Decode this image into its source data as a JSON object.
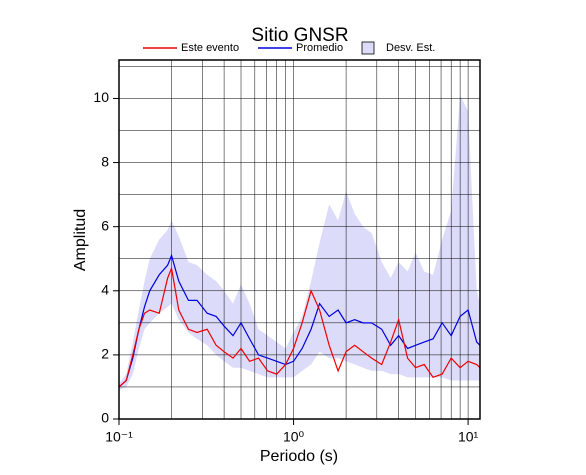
{
  "chart_data": {
    "type": "line",
    "title": "Sitio GNSR",
    "xlabel": "Periodo (s)",
    "ylabel": "Amplitud",
    "xscale": "log",
    "xlim": [
      0.1,
      11.7
    ],
    "ylim": [
      0,
      11.2
    ],
    "xticks": [
      {
        "value": 0.1,
        "label": "10⁻¹"
      },
      {
        "value": 1,
        "label": "10⁰"
      },
      {
        "value": 10,
        "label": "10¹"
      }
    ],
    "xminor_ticks": [
      0.2,
      0.3,
      0.4,
      0.5,
      0.6,
      0.7,
      0.8,
      0.9,
      2,
      3,
      4,
      5,
      6,
      7,
      8,
      9
    ],
    "yticks": [
      0,
      2,
      4,
      6,
      8,
      10
    ],
    "yminor_ticks": [
      1,
      3,
      5,
      7,
      9,
      11
    ],
    "grid": true,
    "x": [
      0.1,
      0.11,
      0.12,
      0.13,
      0.14,
      0.15,
      0.17,
      0.19,
      0.2,
      0.22,
      0.25,
      0.28,
      0.32,
      0.36,
      0.4,
      0.45,
      0.5,
      0.56,
      0.63,
      0.71,
      0.8,
      0.9,
      1.0,
      1.12,
      1.26,
      1.41,
      1.6,
      1.8,
      2.0,
      2.24,
      2.5,
      2.8,
      3.2,
      3.6,
      4.0,
      4.5,
      5.0,
      5.6,
      6.3,
      7.1,
      8.0,
      9.0,
      10,
      11.2,
      11.7
    ],
    "series": [
      {
        "name": "Este evento",
        "color": "#ee0000",
        "values": [
          1.0,
          1.2,
          2.0,
          2.8,
          3.3,
          3.4,
          3.3,
          4.4,
          4.7,
          3.4,
          2.8,
          2.7,
          2.8,
          2.3,
          2.1,
          1.9,
          2.2,
          1.8,
          1.9,
          1.5,
          1.4,
          1.7,
          2.2,
          3.0,
          4.0,
          3.4,
          2.3,
          1.5,
          2.1,
          2.3,
          2.1,
          1.9,
          1.7,
          2.4,
          3.1,
          1.9,
          1.6,
          1.7,
          1.3,
          1.4,
          1.9,
          1.6,
          1.8,
          1.7,
          1.6
        ]
      },
      {
        "name": "Promedio",
        "color": "#0000dd",
        "values": [
          1.0,
          1.2,
          1.9,
          2.8,
          3.5,
          4.0,
          4.5,
          4.8,
          5.1,
          4.3,
          3.7,
          3.7,
          3.3,
          3.2,
          2.9,
          2.6,
          3.0,
          2.5,
          2.0,
          1.9,
          1.8,
          1.7,
          1.8,
          2.2,
          2.8,
          3.6,
          3.2,
          3.4,
          3.0,
          3.1,
          3.0,
          3.0,
          2.8,
          2.3,
          2.6,
          2.2,
          2.3,
          2.4,
          2.5,
          3.0,
          2.6,
          3.2,
          3.4,
          2.4,
          2.3
        ]
      },
      {
        "name": "Desv. Est.",
        "color": "#dcdcfa",
        "lower": [
          0.9,
          1.0,
          1.4,
          2.2,
          2.8,
          3.0,
          3.3,
          3.5,
          3.6,
          3.1,
          2.7,
          2.5,
          2.3,
          2.0,
          1.8,
          1.6,
          1.6,
          1.5,
          1.4,
          1.3,
          1.3,
          1.3,
          1.3,
          1.5,
          1.7,
          2.1,
          1.9,
          1.9,
          1.8,
          1.7,
          1.6,
          1.5,
          1.5,
          1.4,
          1.4,
          1.3,
          1.3,
          1.3,
          1.3,
          1.3,
          1.2,
          1.2,
          1.2,
          1.2,
          1.2
        ],
        "upper": [
          1.1,
          1.4,
          2.4,
          3.4,
          4.3,
          5.0,
          5.6,
          5.9,
          6.2,
          5.7,
          4.9,
          4.8,
          4.5,
          4.3,
          4.0,
          3.6,
          4.2,
          3.6,
          2.8,
          2.6,
          2.4,
          2.2,
          2.7,
          3.2,
          4.3,
          5.5,
          6.7,
          6.2,
          7.1,
          6.4,
          6.0,
          5.8,
          4.9,
          4.4,
          4.9,
          4.6,
          5.2,
          4.6,
          4.5,
          5.6,
          6.5,
          10.1,
          9.6,
          4.0,
          3.6
        ]
      }
    ]
  }
}
